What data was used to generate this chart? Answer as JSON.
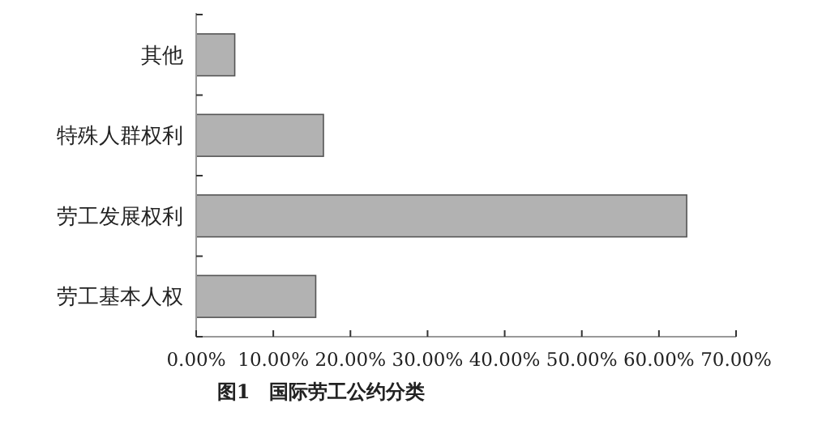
{
  "chart_data": {
    "type": "bar",
    "orientation": "horizontal",
    "title": "图1　国际劳工公约分类",
    "categories": [
      "其他",
      "特殊人群权利",
      "劳工发展权利",
      "劳工基本人权"
    ],
    "values": [
      5.0,
      16.5,
      63.6,
      15.5
    ],
    "color": "#b2b2b2",
    "xlim": [
      0,
      70
    ],
    "xticks": [
      {
        "value": 0,
        "label": "0.00%"
      },
      {
        "value": 10,
        "label": "10.00%"
      },
      {
        "value": 20,
        "label": "20.00%"
      },
      {
        "value": 30,
        "label": "30.00%"
      },
      {
        "value": 40,
        "label": "40.00%"
      },
      {
        "value": 50,
        "label": "50.00%"
      },
      {
        "value": 60,
        "label": "60.00%"
      },
      {
        "value": 70,
        "label": "70.00%"
      }
    ],
    "grid": false
  }
}
